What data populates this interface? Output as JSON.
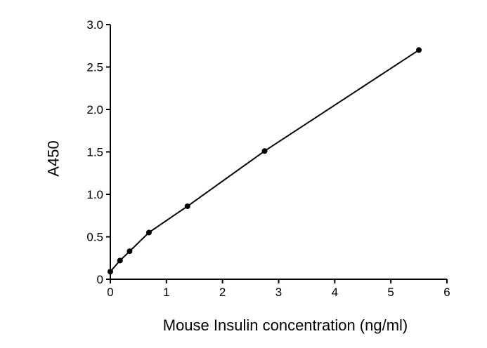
{
  "chart_data": {
    "type": "line",
    "title": "",
    "xlabel": "Mouse Insulin concentration (ng/ml)",
    "ylabel": "A450",
    "xlim": [
      0,
      6
    ],
    "ylim": [
      0,
      3.0
    ],
    "x_ticks": [
      "0",
      "1",
      "2",
      "3",
      "4",
      "5",
      "6"
    ],
    "y_ticks": [
      "0",
      "0.5",
      "1.0",
      "1.5",
      "2.0",
      "2.5",
      "3.0"
    ],
    "grid": false,
    "legend": "none",
    "series": [
      {
        "x": [
          0,
          0.172,
          0.344,
          0.688,
          1.375,
          2.75,
          5.5
        ],
        "y": [
          0.09,
          0.22,
          0.33,
          0.55,
          0.86,
          1.51,
          2.7
        ],
        "color": "#000000",
        "marker": "circle"
      }
    ]
  }
}
